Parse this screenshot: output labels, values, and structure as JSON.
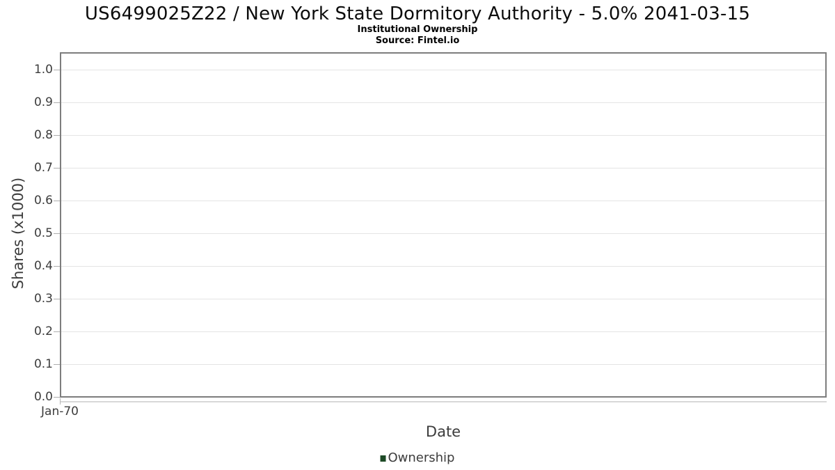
{
  "header": {
    "title": "US6499025Z22 / New York State Dormitory Authority - 5.0% 2041-03-15",
    "subtitle": "Institutional Ownership",
    "source": "Source: Fintel.io"
  },
  "colors": {
    "legend_swatch_green": "#1d4a26",
    "plot_border": "#7d7d7d",
    "gridline": "#e4e4e4",
    "axis_text": "#3c3c3c",
    "title_text": "#0c0c0c"
  },
  "chart_data": {
    "type": "line",
    "title": "US6499025Z22 / New York State Dormitory Authority - 5.0% 2041-03-15",
    "subtitle": "Institutional Ownership",
    "source": "Source: Fintel.io",
    "xlabel": "Date",
    "ylabel": "Shares (x1000)",
    "x_tick_labels": [
      "Jan-70"
    ],
    "y_ticks": [
      0.0,
      0.1,
      0.2,
      0.3,
      0.4,
      0.5,
      0.6,
      0.7,
      0.8,
      0.9,
      1.0
    ],
    "y_tick_labels": [
      "0.0",
      "0.1",
      "0.2",
      "0.3",
      "0.4",
      "0.5",
      "0.6",
      "0.7",
      "0.8",
      "0.9",
      "1.0"
    ],
    "ylim": [
      0.0,
      1.05
    ],
    "grid": true,
    "legend": {
      "position": "bottom",
      "entries": [
        {
          "label": "Ownership",
          "color": "#1d4a26"
        }
      ]
    },
    "series": [
      {
        "name": "Ownership",
        "x": [],
        "values": [],
        "color": "#1d4a26"
      }
    ]
  }
}
